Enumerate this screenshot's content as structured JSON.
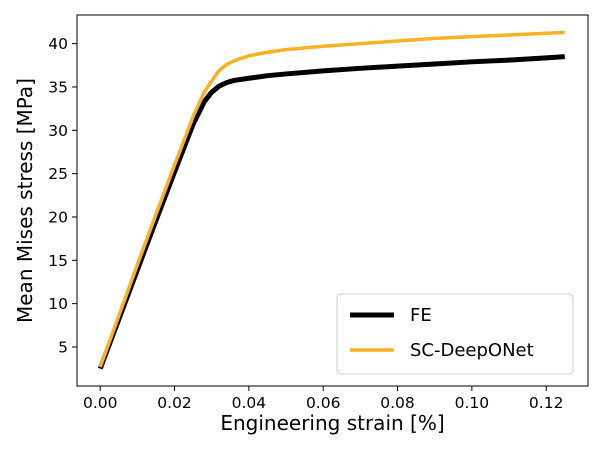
{
  "chart_data": {
    "type": "line",
    "title": "",
    "xlabel": "Engineering strain [%]",
    "ylabel": "Mean Mises stress [MPa]",
    "xlim": [
      -0.00625,
      0.13125
    ],
    "ylim": [
      0.5,
      43.3
    ],
    "xticks": [
      0.0,
      0.02,
      0.04,
      0.06,
      0.08,
      0.1,
      0.12
    ],
    "xtick_labels": [
      "0.00",
      "0.02",
      "0.04",
      "0.06",
      "0.08",
      "0.10",
      "0.12"
    ],
    "yticks": [
      5,
      10,
      15,
      20,
      25,
      30,
      35,
      40
    ],
    "ytick_labels": [
      "5",
      "10",
      "15",
      "20",
      "25",
      "30",
      "35",
      "40"
    ],
    "grid": false,
    "legend_position": "lower-right",
    "series": [
      {
        "name": "FE",
        "color": "#000000",
        "x": [
          0.0,
          0.005,
          0.01,
          0.015,
          0.02,
          0.025,
          0.028,
          0.03,
          0.032,
          0.034,
          0.036,
          0.04,
          0.045,
          0.05,
          0.06,
          0.07,
          0.08,
          0.09,
          0.1,
          0.11,
          0.12,
          0.125
        ],
        "y": [
          2.5,
          8.2,
          13.9,
          19.6,
          25.2,
          30.7,
          33.3,
          34.4,
          35.1,
          35.5,
          35.75,
          36.0,
          36.3,
          36.5,
          36.85,
          37.15,
          37.4,
          37.65,
          37.9,
          38.1,
          38.35,
          38.5
        ]
      },
      {
        "name": "SC-DeepONet",
        "color": "#fbb124",
        "x": [
          0.0,
          0.005,
          0.01,
          0.015,
          0.02,
          0.025,
          0.028,
          0.03,
          0.032,
          0.034,
          0.036,
          0.04,
          0.045,
          0.05,
          0.06,
          0.07,
          0.08,
          0.09,
          0.1,
          0.11,
          0.12,
          0.125
        ],
        "y": [
          2.7,
          8.6,
          14.5,
          20.3,
          26.0,
          31.6,
          34.4,
          35.7,
          36.9,
          37.6,
          38.0,
          38.6,
          39.0,
          39.3,
          39.7,
          40.0,
          40.3,
          40.6,
          40.8,
          41.0,
          41.2,
          41.3
        ]
      }
    ]
  }
}
